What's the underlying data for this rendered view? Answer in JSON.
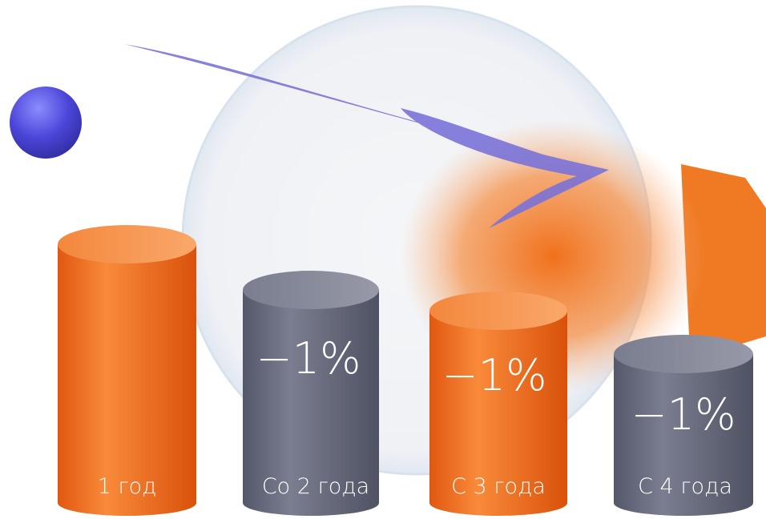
{
  "items": [
    {
      "label": "1 год"
    },
    {
      "label": "Со 2 года",
      "badge": "−1%"
    },
    {
      "label": "С 3 года",
      "badge": "−1%"
    },
    {
      "label": "С 4 года",
      "badge": "−1%"
    }
  ]
}
